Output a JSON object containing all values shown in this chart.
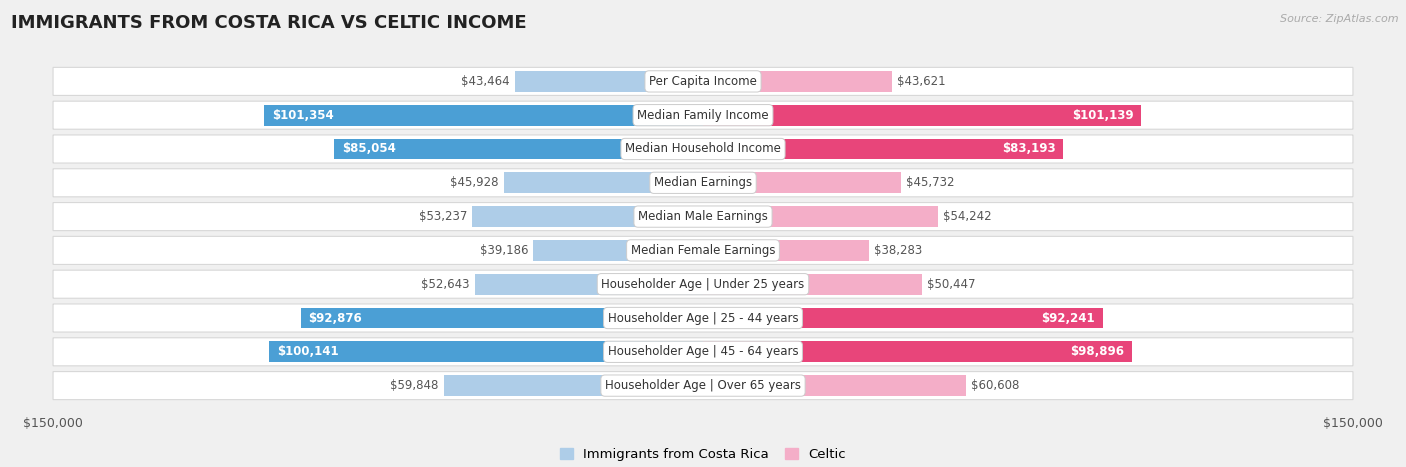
{
  "title": "IMMIGRANTS FROM COSTA RICA VS CELTIC INCOME",
  "source": "Source: ZipAtlas.com",
  "categories": [
    "Per Capita Income",
    "Median Family Income",
    "Median Household Income",
    "Median Earnings",
    "Median Male Earnings",
    "Median Female Earnings",
    "Householder Age | Under 25 years",
    "Householder Age | 25 - 44 years",
    "Householder Age | 45 - 64 years",
    "Householder Age | Over 65 years"
  ],
  "left_values": [
    43464,
    101354,
    85054,
    45928,
    53237,
    39186,
    52643,
    92876,
    100141,
    59848
  ],
  "right_values": [
    43621,
    101139,
    83193,
    45732,
    54242,
    38283,
    50447,
    92241,
    98896,
    60608
  ],
  "left_labels": [
    "$43,464",
    "$101,354",
    "$85,054",
    "$45,928",
    "$53,237",
    "$39,186",
    "$52,643",
    "$92,876",
    "$100,141",
    "$59,848"
  ],
  "right_labels": [
    "$43,621",
    "$101,139",
    "$83,193",
    "$45,732",
    "$54,242",
    "$38,283",
    "$50,447",
    "$92,241",
    "$98,896",
    "$60,608"
  ],
  "left_color_light": "#aecde8",
  "left_color_dark": "#4b9fd5",
  "right_color_light": "#f4aec8",
  "right_color_dark": "#e8457a",
  "max_value": 150000,
  "bg_color": "#f0f0f0",
  "row_bg": "#ffffff",
  "row_border": "#d8d8d8",
  "label_color_inside": "#ffffff",
  "label_color_outside": "#555555",
  "legend_left": "Immigrants from Costa Rica",
  "legend_right": "Celtic",
  "threshold_inside": 65000,
  "title_fontsize": 13,
  "label_fontsize": 8.5,
  "axis_fontsize": 9
}
